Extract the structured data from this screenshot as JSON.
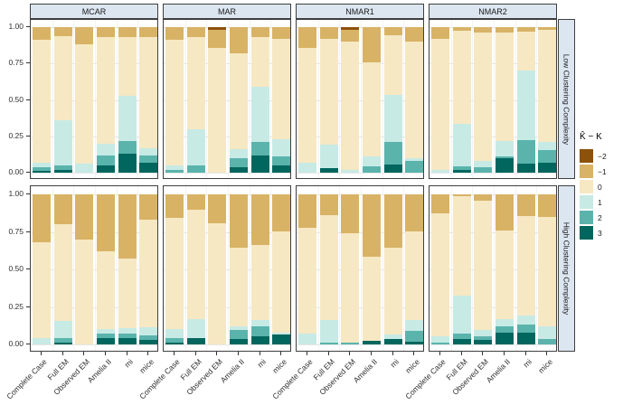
{
  "figure": {
    "kind": "faceted normalized stacked bar chart",
    "strip_bg": "#dce6f1",
    "panel_border": "#3f3f3f",
    "axis_text_color": "#303030",
    "grid_major": "#e7e7e7",
    "grid_minor": "#f3f3f3",
    "background": "#ffffff"
  },
  "chart_data": {
    "type": "bar",
    "variant": "stacked-normalized",
    "title": "",
    "xlabel": "",
    "ylabel": "",
    "ylim": [
      0,
      1
    ],
    "grid": true,
    "legend_position": "right",
    "facet_columns": [
      "MCAR",
      "MAR",
      "NMAR1",
      "NMAR2"
    ],
    "facet_rows": [
      "Low Clustering Complexity",
      "High Clustering Complexity"
    ],
    "categories": [
      "Complete Case",
      "Full EM",
      "Observed EM",
      "Amelia II",
      "mi",
      "mice"
    ],
    "y_tick_values": [
      1.0,
      0.75,
      0.5,
      0.25,
      0.0
    ],
    "y_tick_labels": [
      "1.00",
      "0.75",
      "0.50",
      "0.25",
      "0.00"
    ],
    "segments_order": [
      "-2",
      "-1",
      "0",
      "1",
      "2",
      "3"
    ],
    "segment_colors": {
      "-2": "#8c510a",
      "-1": "#d8b365",
      "0": "#f6e8c3",
      "1": "#c7eae5",
      "2": "#5ab4ac",
      "3": "#01665e"
    },
    "legend": {
      "title": "K̂ − K",
      "entries": [
        {
          "label": "−2",
          "key": "-2"
        },
        {
          "label": "−1",
          "key": "-1"
        },
        {
          "label": "0",
          "key": "0"
        },
        {
          "label": "1",
          "key": "1"
        },
        {
          "label": "2",
          "key": "2"
        },
        {
          "label": "3",
          "key": "3"
        }
      ]
    },
    "panels": [
      {
        "facet_row": "Low Clustering Complexity",
        "facet_col": "MCAR",
        "row": 0,
        "col": 0,
        "bars": [
          [
            0,
            0.09,
            0.84,
            0.03,
            0.03,
            0.01
          ],
          [
            0,
            0.06,
            0.58,
            0.31,
            0.03,
            0.02
          ],
          [
            0,
            0.12,
            0.82,
            0.06,
            0,
            0
          ],
          [
            0,
            0.07,
            0.73,
            0.08,
            0.07,
            0.05
          ],
          [
            0,
            0.07,
            0.4,
            0.31,
            0.09,
            0.13
          ],
          [
            0,
            0.07,
            0.76,
            0.05,
            0.05,
            0.07
          ]
        ]
      },
      {
        "facet_row": "Low Clustering Complexity",
        "facet_col": "MAR",
        "row": 0,
        "col": 1,
        "bars": [
          [
            0,
            0.09,
            0.86,
            0.03,
            0.02,
            0
          ],
          [
            0,
            0.07,
            0.63,
            0.25,
            0.05,
            0
          ],
          [
            0.02,
            0.12,
            0.86,
            0,
            0,
            0
          ],
          [
            0,
            0.18,
            0.66,
            0.06,
            0.06,
            0.04
          ],
          [
            0,
            0.07,
            0.34,
            0.38,
            0.09,
            0.12
          ],
          [
            0,
            0.08,
            0.69,
            0.12,
            0.06,
            0.05
          ]
        ]
      },
      {
        "facet_row": "Low Clustering Complexity",
        "facet_col": "NMAR1",
        "row": 0,
        "col": 2,
        "bars": [
          [
            0,
            0.14,
            0.79,
            0.07,
            0,
            0
          ],
          [
            0,
            0.08,
            0.73,
            0.16,
            0,
            0.03
          ],
          [
            0.02,
            0.08,
            0.88,
            0.02,
            0,
            0
          ],
          [
            0,
            0.24,
            0.65,
            0.065,
            0.045,
            0
          ],
          [
            0,
            0.055,
            0.41,
            0.325,
            0.155,
            0.055
          ],
          [
            0,
            0.1,
            0.8,
            0.02,
            0.08,
            0
          ]
        ]
      },
      {
        "facet_row": "Low Clustering Complexity",
        "facet_col": "NMAR2",
        "row": 0,
        "col": 3,
        "bars": [
          [
            0,
            0.08,
            0.9,
            0.02,
            0,
            0
          ],
          [
            0,
            0.025,
            0.64,
            0.29,
            0.025,
            0.02
          ],
          [
            0,
            0.04,
            0.88,
            0.04,
            0.04,
            0
          ],
          [
            0,
            0.035,
            0.745,
            0.11,
            0.01,
            0.1
          ],
          [
            0,
            0.03,
            0.27,
            0.475,
            0.16,
            0.065
          ],
          [
            0,
            0.02,
            0.77,
            0.055,
            0.085,
            0.07
          ]
        ]
      },
      {
        "facet_row": "High Clustering Complexity",
        "facet_col": "MCAR",
        "row": 1,
        "col": 0,
        "bars": [
          [
            0,
            0.32,
            0.64,
            0.04,
            0,
            0
          ],
          [
            0,
            0.2,
            0.645,
            0.115,
            0.03,
            0.01
          ],
          [
            0,
            0.3,
            0.7,
            0,
            0,
            0
          ],
          [
            0,
            0.38,
            0.52,
            0.025,
            0.03,
            0.045
          ],
          [
            0,
            0.43,
            0.46,
            0.04,
            0.03,
            0.04
          ],
          [
            0,
            0.17,
            0.715,
            0.055,
            0.03,
            0.03
          ]
        ]
      },
      {
        "facet_row": "High Clustering Complexity",
        "facet_col": "MAR",
        "row": 1,
        "col": 1,
        "bars": [
          [
            0,
            0.155,
            0.74,
            0.06,
            0.035,
            0.01
          ],
          [
            0,
            0.1,
            0.73,
            0.13,
            0,
            0.04
          ],
          [
            0,
            0.19,
            0.81,
            0,
            0,
            0
          ],
          [
            0,
            0.355,
            0.525,
            0.025,
            0.06,
            0.035
          ],
          [
            0,
            0.34,
            0.5,
            0.04,
            0.065,
            0.055
          ],
          [
            0,
            0.25,
            0.67,
            0.015,
            0,
            0.065
          ]
        ]
      },
      {
        "facet_row": "High Clustering Complexity",
        "facet_col": "NMAR1",
        "row": 1,
        "col": 2,
        "bars": [
          [
            0,
            0.22,
            0.705,
            0.075,
            0,
            0
          ],
          [
            0,
            0.14,
            0.7,
            0.15,
            0.01,
            0
          ],
          [
            0,
            0.26,
            0.73,
            0,
            0.01,
            0
          ],
          [
            0,
            0.415,
            0.56,
            0,
            0,
            0.025
          ],
          [
            0,
            0.355,
            0.58,
            0.03,
            0,
            0.035
          ],
          [
            0,
            0.25,
            0.59,
            0.07,
            0.07,
            0.02
          ]
        ]
      },
      {
        "facet_row": "High Clustering Complexity",
        "facet_col": "NMAR2",
        "row": 1,
        "col": 3,
        "bars": [
          [
            0,
            0.125,
            0.82,
            0.04,
            0.015,
            0
          ],
          [
            0,
            0.01,
            0.665,
            0.255,
            0.035,
            0.035
          ],
          [
            0,
            0.04,
            0.865,
            0.04,
            0.025,
            0.03
          ],
          [
            0,
            0.24,
            0.59,
            0.05,
            0.04,
            0.08
          ],
          [
            0,
            0.145,
            0.66,
            0.06,
            0.055,
            0.08
          ],
          [
            0,
            0.15,
            0.73,
            0.085,
            0.035,
            0
          ]
        ]
      }
    ]
  }
}
